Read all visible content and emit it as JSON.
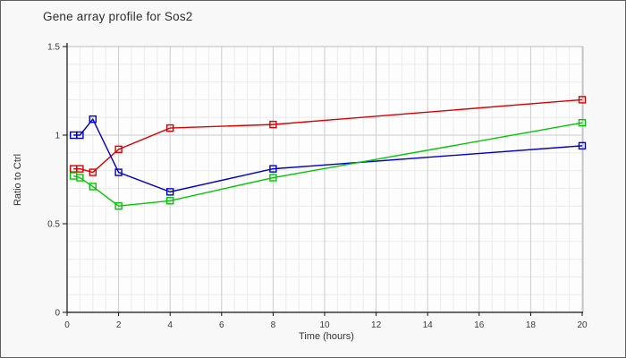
{
  "chart_data": {
    "type": "line",
    "title": "Gene array profile for Sos2",
    "xlabel": "Time (hours)",
    "ylabel": "Ratio to Ctrl",
    "x": [
      0.25,
      0.5,
      1,
      2,
      4,
      8,
      20
    ],
    "series": [
      {
        "name": "red-series",
        "color": "#dd0000",
        "values": [
          0.81,
          0.81,
          0.79,
          0.92,
          1.04,
          1.06,
          1.2
        ]
      },
      {
        "name": "blue-series",
        "color": "#0000cc",
        "values": [
          1.0,
          1.0,
          1.09,
          0.79,
          0.68,
          0.81,
          0.94
        ]
      },
      {
        "name": "green-series",
        "color": "#00c800",
        "values": [
          0.77,
          0.76,
          0.71,
          0.6,
          0.63,
          0.76,
          1.07
        ]
      }
    ],
    "xlim": [
      0,
      20
    ],
    "ylim": [
      0,
      1.5
    ],
    "x_ticks": [
      0,
      2,
      4,
      6,
      8,
      10,
      12,
      14,
      16,
      18,
      20
    ],
    "y_ticks": [
      0,
      0.5,
      1,
      1.5
    ],
    "y_tick_labels": [
      "0",
      "0.5",
      "1",
      "1.5"
    ],
    "minor_x_step": 0.5,
    "minor_y_step": 0.1,
    "grid": true,
    "legend_position": "none",
    "marker": "open-square"
  },
  "palette": {
    "outer_background": "#f8f8f8",
    "plot_background": "#fdfdfd",
    "frame_border": "#5f5f5f",
    "axis_color": "#111111",
    "plot_border_light": "#bcbcbc",
    "grid_major": "#cccccc",
    "grid_minor": "#ececec",
    "text_color": "#333333"
  }
}
